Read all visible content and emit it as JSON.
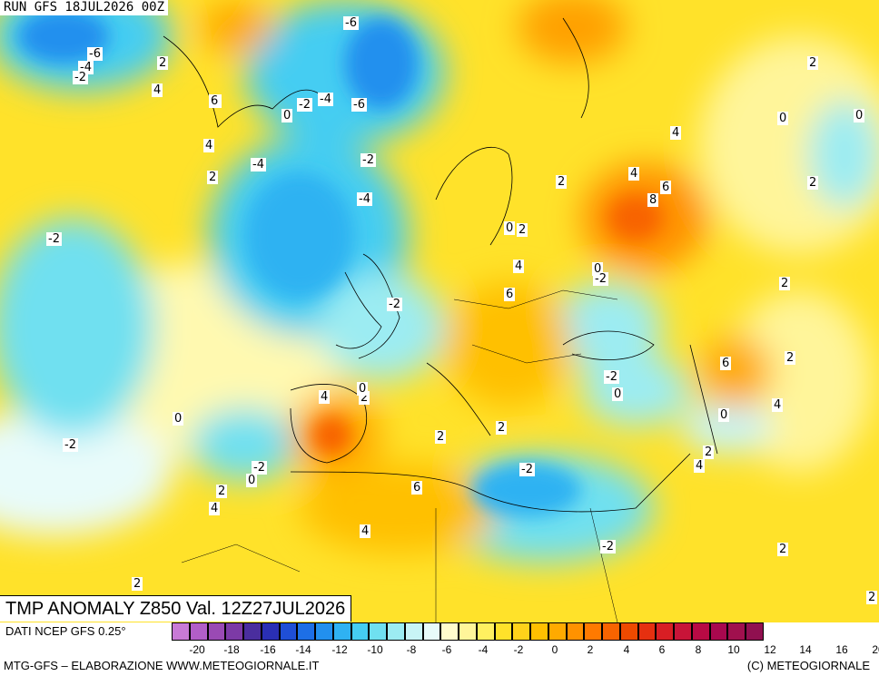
{
  "header": {
    "run": "RUN GFS 18JUL2026 00Z"
  },
  "title": "TMP ANOMALY Z850 Val. 12Z27JUL2026",
  "footer": {
    "dati": "DATI NCEP GFS 0.25°",
    "source": "MTG-GFS – ELABORAZIONE WWW.METEOGIORNALE.IT",
    "copyright": "(C) METEOGIORNALE"
  },
  "legend": {
    "ticks": [
      "-20",
      "-18",
      "-16",
      "-14",
      "-12",
      "-10",
      "-8",
      "-6",
      "-4",
      "-2",
      "0",
      "2",
      "4",
      "6",
      "8",
      "10",
      "12",
      "14",
      "16",
      "20"
    ],
    "colors": [
      "#c87ad6",
      "#b25ec8",
      "#9a4ab4",
      "#7c3aa6",
      "#4a2e9e",
      "#2a2fb4",
      "#1f4fd6",
      "#1d6fe6",
      "#2290ee",
      "#2fb2f2",
      "#45cdf2",
      "#6fe0f0",
      "#9cecf2",
      "#c8f4f6",
      "#e8fbfa",
      "#fffccc",
      "#fff59a",
      "#fff060",
      "#ffe22a",
      "#ffd21a",
      "#ffc000",
      "#ffaa00",
      "#ff9200",
      "#ff7a00",
      "#f86400",
      "#ee4a00",
      "#e63010",
      "#d81e24",
      "#c81438",
      "#b80a44",
      "#a8084e",
      "#a0104e",
      "#901050"
    ]
  },
  "map": {
    "background_colors": {
      "warm": "#ffd21a",
      "neutral": "#fffccc",
      "cold": "#2fb2f2"
    },
    "labels": [
      {
        "t": "-6"
      },
      {
        "t": "-6"
      },
      {
        "t": "-4"
      },
      {
        "t": "-2"
      },
      {
        "t": "2"
      },
      {
        "t": "4"
      },
      {
        "t": "6"
      },
      {
        "t": "4"
      },
      {
        "t": "2"
      },
      {
        "t": "0"
      },
      {
        "t": "-2"
      },
      {
        "t": "-4"
      },
      {
        "t": "-6"
      },
      {
        "t": "-4"
      },
      {
        "t": "-2"
      },
      {
        "t": "-4"
      },
      {
        "t": "2"
      },
      {
        "t": "6"
      },
      {
        "t": "2"
      },
      {
        "t": "4"
      },
      {
        "t": "0"
      },
      {
        "t": "0"
      },
      {
        "t": "4"
      },
      {
        "t": "2"
      },
      {
        "t": "4"
      },
      {
        "t": "8"
      },
      {
        "t": "6"
      },
      {
        "t": "2"
      },
      {
        "t": "-2"
      },
      {
        "t": "0"
      },
      {
        "t": "2"
      },
      {
        "t": "4"
      },
      {
        "t": "6"
      },
      {
        "t": "0"
      },
      {
        "t": "-2"
      },
      {
        "t": "-2"
      },
      {
        "t": "2"
      },
      {
        "t": "-2"
      },
      {
        "t": "2"
      },
      {
        "t": "4"
      },
      {
        "t": "0"
      },
      {
        "t": "0"
      },
      {
        "t": "-2"
      },
      {
        "t": "0"
      },
      {
        "t": "2"
      },
      {
        "t": "6"
      },
      {
        "t": "4"
      },
      {
        "t": "0"
      },
      {
        "t": "2"
      },
      {
        "t": "2"
      },
      {
        "t": "-2"
      },
      {
        "t": "0"
      },
      {
        "t": "2"
      },
      {
        "t": "4"
      },
      {
        "t": "-2"
      },
      {
        "t": "6"
      },
      {
        "t": "-2"
      },
      {
        "t": "4"
      },
      {
        "t": "2"
      },
      {
        "t": "2"
      },
      {
        "t": "2"
      }
    ]
  }
}
